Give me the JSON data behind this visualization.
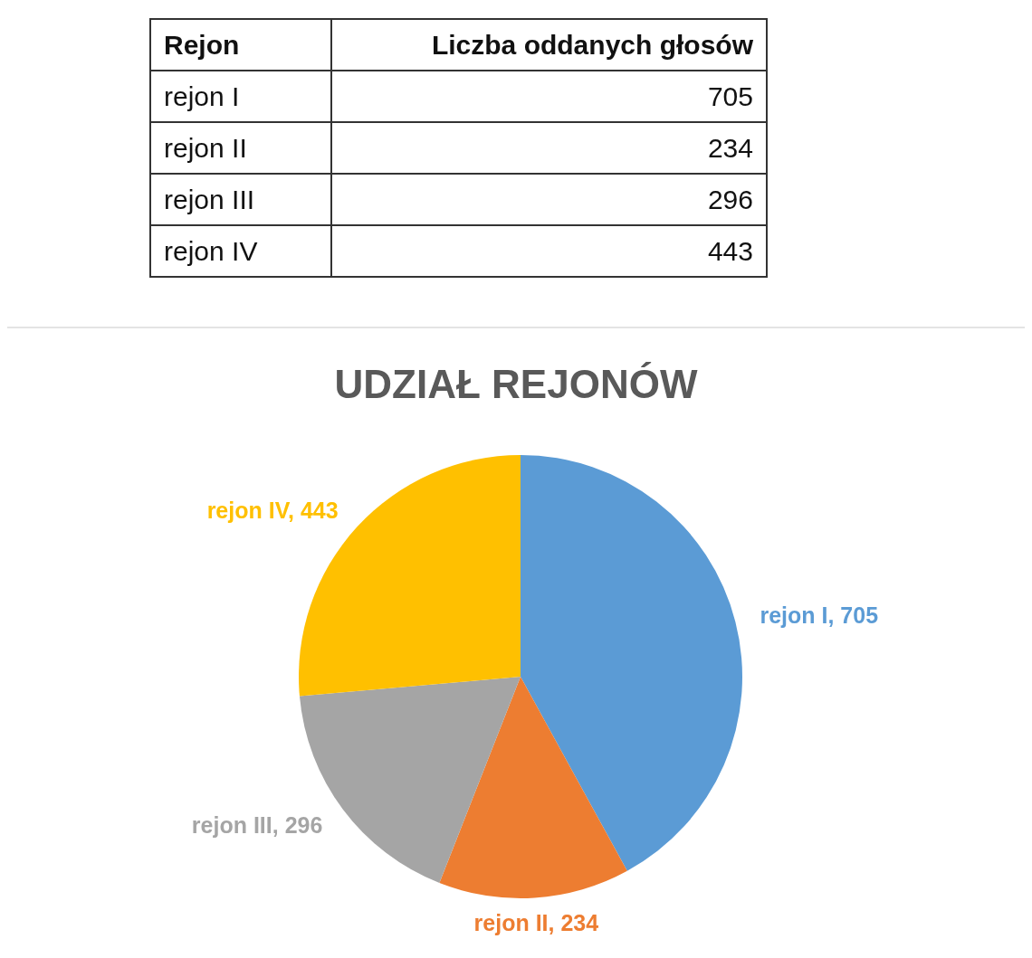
{
  "chart_data": [
    {
      "type": "other",
      "categories": [
        "rejon I",
        "rejon II",
        "rejon III",
        "rejon IV"
      ],
      "values": [
        705,
        234,
        296,
        443
      ],
      "data_labels": true,
      "annotations": [
        "Rejon",
        "Liczba oddanych głosów"
      ]
    },
    {
      "type": "pie",
      "title": "UDZIAŁ REJONÓW",
      "categories": [
        "rejon I",
        "rejon II",
        "rejon III",
        "rejon IV"
      ],
      "values": [
        705,
        234,
        296,
        443
      ],
      "colors": [
        "#5b9bd5",
        "#ed7d31",
        "#a5a5a5",
        "#ffc000"
      ],
      "value_labels": [
        ", 705",
        ", 234",
        ", 296",
        ", 443"
      ]
    }
  ]
}
